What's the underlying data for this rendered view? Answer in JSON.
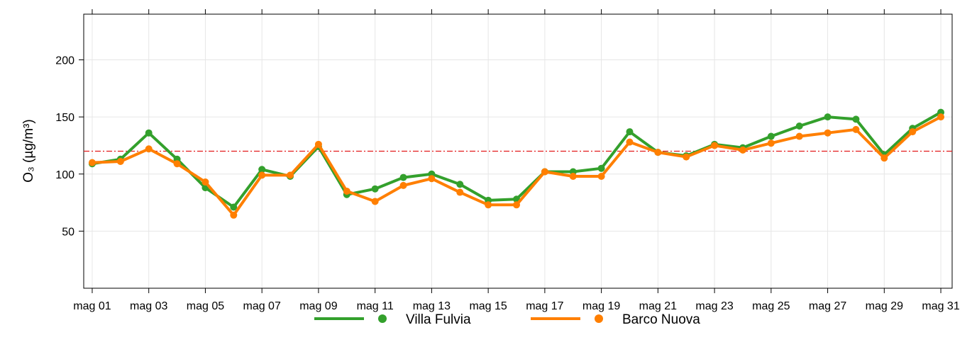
{
  "chart_data": {
    "type": "line",
    "title": "",
    "xlabel": "",
    "ylabel": "O₃ (µg/m³)",
    "ylim": [
      0,
      240
    ],
    "y_ticks": [
      50,
      100,
      150,
      200
    ],
    "x_ticks": [
      "mag 01",
      "mag 03",
      "mag 05",
      "mag 07",
      "mag 09",
      "mag 11",
      "mag 13",
      "mag 15",
      "mag 17",
      "mag 19",
      "mag 21",
      "mag 23",
      "mag 25",
      "mag 27",
      "mag 29",
      "mag 31"
    ],
    "x": [
      1,
      2,
      3,
      4,
      5,
      6,
      7,
      8,
      9,
      10,
      11,
      12,
      13,
      14,
      15,
      16,
      17,
      18,
      19,
      20,
      21,
      22,
      23,
      24,
      25,
      26,
      27,
      28,
      29,
      30,
      31
    ],
    "grid": true,
    "threshold": 120,
    "legend_position": "bottom",
    "series": [
      {
        "name": "Villa Fulvia",
        "color": "#33a02c",
        "values": [
          109,
          113,
          136,
          113,
          88,
          71,
          104,
          98,
          124,
          82,
          87,
          97,
          100,
          91,
          77,
          78,
          102,
          102,
          105,
          137,
          119,
          116,
          126,
          123,
          133,
          142,
          150,
          148,
          117,
          140,
          154
        ]
      },
      {
        "name": "Barco Nuova",
        "color": "#ff7f00",
        "values": [
          110,
          111,
          122,
          109,
          93,
          64,
          99,
          99,
          126,
          85,
          76,
          90,
          96,
          84,
          73,
          73,
          102,
          98,
          98,
          128,
          119,
          115,
          125,
          121,
          127,
          133,
          136,
          139,
          114,
          137,
          150
        ]
      }
    ],
    "threshold_color": "#e31a1c"
  }
}
